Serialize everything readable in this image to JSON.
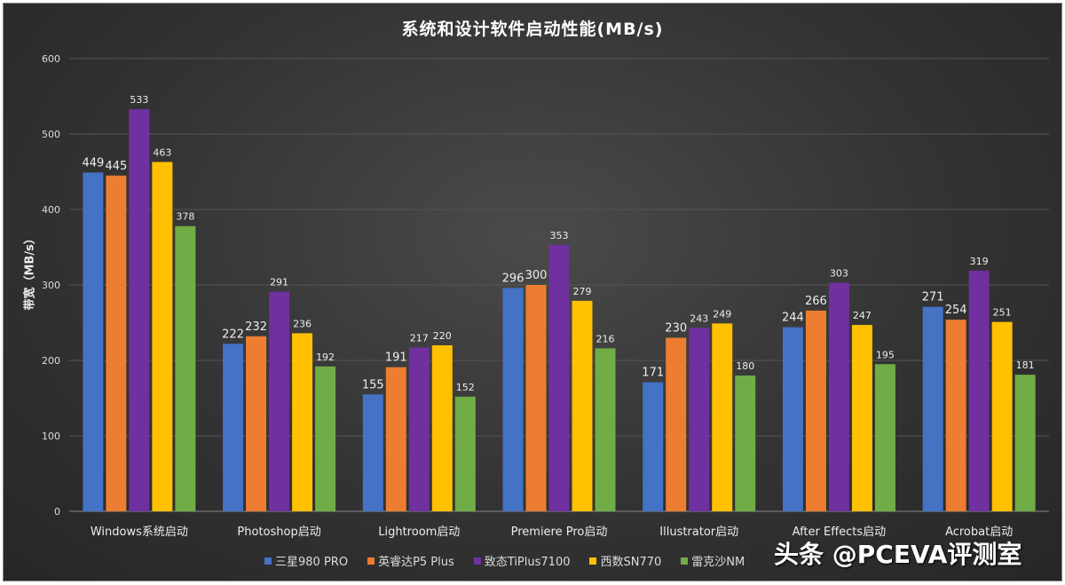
{
  "chart_data": {
    "type": "bar",
    "title": "系统和设计软件启动性能(MB/s)",
    "ylabel": "带宽（MB/s）",
    "xlabel": "",
    "ylim": [
      0,
      600
    ],
    "yticks": [
      0,
      100,
      200,
      300,
      400,
      500,
      600
    ],
    "grid": true,
    "legend_placement": "bottom",
    "categories": [
      "Windows系统启动",
      "Photoshop启动",
      "Lightroom启动",
      "Premiere Pro启动",
      "Illustrator启动",
      "After Effects启动",
      "Acrobat启动"
    ],
    "series": [
      {
        "name": "三星980 PRO",
        "color": "#4472c4",
        "values": [
          449,
          222,
          155,
          296,
          171,
          244,
          271
        ]
      },
      {
        "name": "英睿达P5 Plus",
        "color": "#ed7d31",
        "values": [
          445,
          232,
          191,
          300,
          230,
          266,
          254
        ]
      },
      {
        "name": "致态TiPlus7100",
        "color": "#7030a0",
        "values": [
          533,
          291,
          217,
          353,
          243,
          303,
          319
        ]
      },
      {
        "name": "西数SN770",
        "color": "#ffc000",
        "values": [
          463,
          236,
          220,
          279,
          249,
          247,
          251
        ]
      },
      {
        "name": "雷克沙NM",
        "color": "#70ad47",
        "values": [
          378,
          192,
          152,
          216,
          180,
          195,
          181
        ]
      }
    ]
  },
  "watermark": "头条 @PCEVA评测室"
}
